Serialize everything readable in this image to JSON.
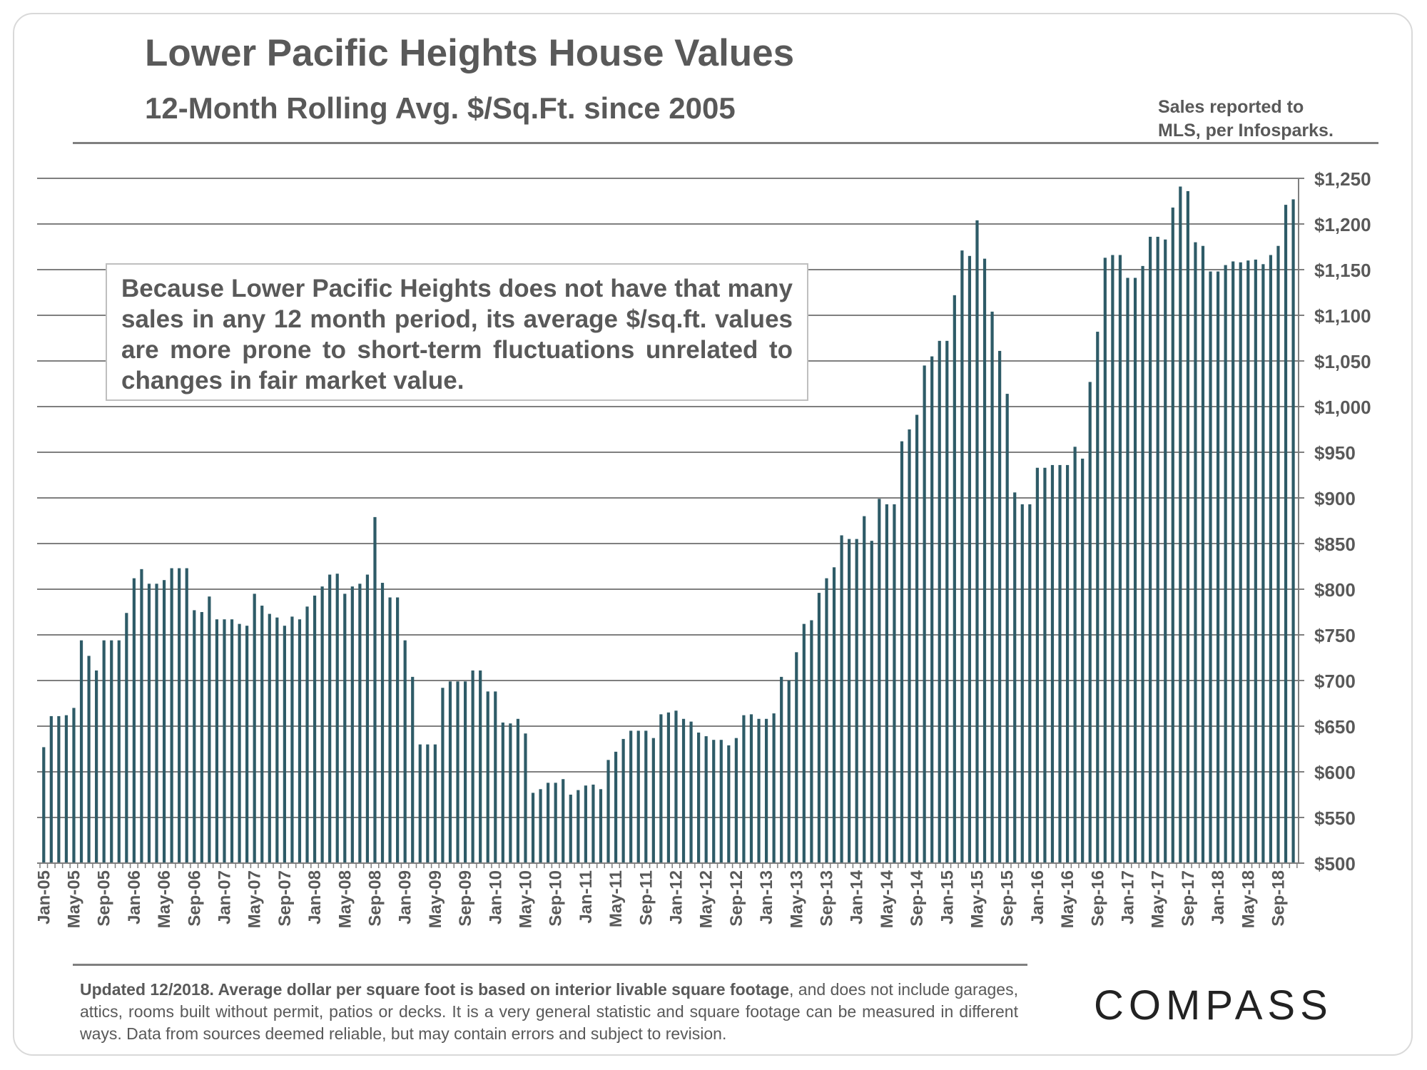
{
  "header": {
    "title": "Lower Pacific Heights House Values",
    "subtitle": "12-Month Rolling Avg. $/Sq.Ft. since 2005",
    "source_line1": "Sales reported to",
    "source_line2": "MLS, per Infosparks."
  },
  "callout": {
    "text": "Because Lower Pacific Heights does not have that many sales in any 12 month period, its average $/sq.ft. values are more prone to short-term fluctuations unrelated to changes in fair market value."
  },
  "footer": {
    "bold_text": "Updated 12/2018. Average dollar per square foot is based on interior livable square footage",
    "regular_text": ", and does not include garages, attics, rooms built without permit, patios or decks. It is a very general statistic and square footage can be measured in different ways. Data from sources deemed reliable, but may contain errors and subject to revision.",
    "logo_text": "COMPASS"
  },
  "colors": {
    "bar": "#2e5b67",
    "grid": "#7f7f7f",
    "text": "#595959"
  },
  "chart_data": {
    "type": "bar",
    "title": "Lower Pacific Heights House Values",
    "subtitle": "12-Month Rolling Avg. $/Sq.Ft. since 2005",
    "xlabel": "",
    "ylabel": "",
    "ylim": [
      500,
      1250
    ],
    "yticks": [
      500,
      550,
      600,
      650,
      700,
      750,
      800,
      850,
      900,
      950,
      1000,
      1050,
      1100,
      1150,
      1200,
      1250
    ],
    "ytick_labels": [
      "$500",
      "$550",
      "$600",
      "$650",
      "$700",
      "$750",
      "$800",
      "$850",
      "$900",
      "$950",
      "$1,000",
      "$1,050",
      "$1,100",
      "$1,150",
      "$1,200",
      "$1,250"
    ],
    "y_axis_position": "right",
    "grid": true,
    "start_month": "Jan-05",
    "xtick_labels": [
      "Jan-05",
      "May-05",
      "Sep-05",
      "Jan-06",
      "May-06",
      "Sep-06",
      "Jan-07",
      "May-07",
      "Sep-07",
      "Jan-08",
      "May-08",
      "Sep-08",
      "Jan-09",
      "May-09",
      "Sep-09",
      "Jan-10",
      "May-10",
      "Sep-10",
      "Jan-11",
      "May-11",
      "Sep-11",
      "Jan-12",
      "May-12",
      "Sep-12",
      "Jan-13",
      "May-13",
      "Sep-13",
      "Jan-14",
      "May-14",
      "Sep-14",
      "Jan-15",
      "May-15",
      "Sep-15",
      "Jan-16",
      "May-16",
      "Sep-16",
      "Jan-17",
      "May-17",
      "Sep-17",
      "Jan-18",
      "May-18",
      "Sep-18"
    ],
    "values": [
      627,
      661,
      661,
      662,
      670,
      744,
      727,
      711,
      744,
      744,
      744,
      774,
      812,
      822,
      806,
      806,
      810,
      823,
      823,
      823,
      777,
      775,
      792,
      767,
      767,
      767,
      762,
      760,
      795,
      782,
      773,
      769,
      760,
      770,
      767,
      781,
      793,
      803,
      816,
      817,
      795,
      803,
      806,
      816,
      879,
      807,
      791,
      791,
      744,
      704,
      630,
      630,
      630,
      692,
      699,
      699,
      699,
      711,
      711,
      688,
      688,
      654,
      653,
      658,
      642,
      577,
      581,
      588,
      588,
      592,
      575,
      580,
      585,
      586,
      581,
      613,
      622,
      636,
      645,
      645,
      645,
      637,
      663,
      665,
      667,
      658,
      655,
      643,
      639,
      635,
      635,
      629,
      637,
      662,
      663,
      658,
      658,
      664,
      704,
      700,
      731,
      762,
      766,
      796,
      812,
      824,
      859,
      855,
      855,
      880,
      853,
      899,
      893,
      893,
      962,
      975,
      991,
      1045,
      1055,
      1072,
      1072,
      1122,
      1171,
      1165,
      1204,
      1162,
      1104,
      1061,
      1014,
      906,
      893,
      893,
      933,
      933,
      936,
      936,
      936,
      956,
      943,
      1027,
      1082,
      1163,
      1166,
      1166,
      1141,
      1141,
      1154,
      1186,
      1186,
      1183,
      1218,
      1241,
      1236,
      1180,
      1176,
      1148,
      1148,
      1155,
      1159,
      1158,
      1160,
      1161,
      1156,
      1166,
      1176,
      1221,
      1227
    ]
  }
}
